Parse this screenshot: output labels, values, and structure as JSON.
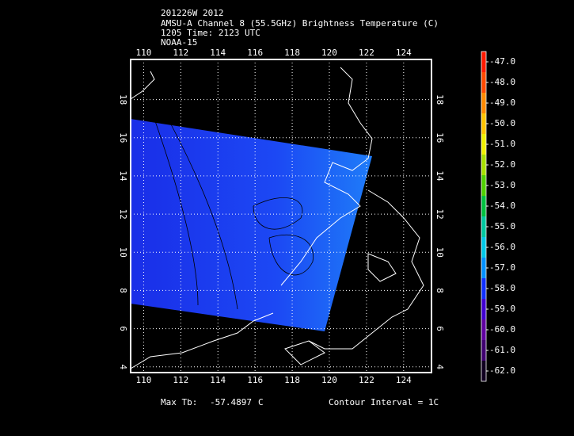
{
  "map": {
    "title_lines": [
      "201226W 2012",
      "AMSU-A Channel 8 (55.5GHz) Brightness Temperature (C)",
      "1205 Time: 2123 UTC",
      "NOAA-15"
    ],
    "xlim": [
      109.3,
      125.5
    ],
    "ylim": [
      3.7,
      20.1
    ],
    "xticks": [
      110,
      112,
      114,
      116,
      118,
      120,
      122,
      124
    ],
    "yticks": [
      4,
      6,
      8,
      10,
      12,
      14,
      16,
      18
    ],
    "grid": true,
    "colorbar": {
      "ticks": [
        {
          "value": -47,
          "label": "-47.0"
        },
        {
          "value": -48,
          "label": "-48.0"
        },
        {
          "value": -49,
          "label": "-49.0"
        },
        {
          "value": -50,
          "label": "-50.0"
        },
        {
          "value": -51,
          "label": "-51.0"
        },
        {
          "value": -52,
          "label": "-52.0"
        },
        {
          "value": -53,
          "label": "-53.0"
        },
        {
          "value": -54,
          "label": "-54.0"
        },
        {
          "value": -55,
          "label": "-55.0"
        },
        {
          "value": -56,
          "label": "-56.0"
        },
        {
          "value": -57,
          "label": "-57.0"
        },
        {
          "value": -58,
          "label": "-58.0"
        },
        {
          "value": -59,
          "label": "-59.0"
        },
        {
          "value": -60,
          "label": "-60.0"
        },
        {
          "value": -61,
          "label": "-61.0"
        },
        {
          "value": -62,
          "label": "-62.0"
        }
      ],
      "colors": [
        "#ff1a00",
        "#ff4a00",
        "#ff8a00",
        "#ffc400",
        "#f0f000",
        "#a8e000",
        "#50d000",
        "#00c040",
        "#00c8a0",
        "#00c8e8",
        "#0090ff",
        "#1030ff",
        "#4000d0",
        "#6000a0",
        "#400070",
        "#100020"
      ]
    },
    "max_tb_label": "Max Tb:",
    "max_tb": -57.4897,
    "max_tb_unit": "C",
    "contour_interval": "Contour Interval = 1C"
  }
}
